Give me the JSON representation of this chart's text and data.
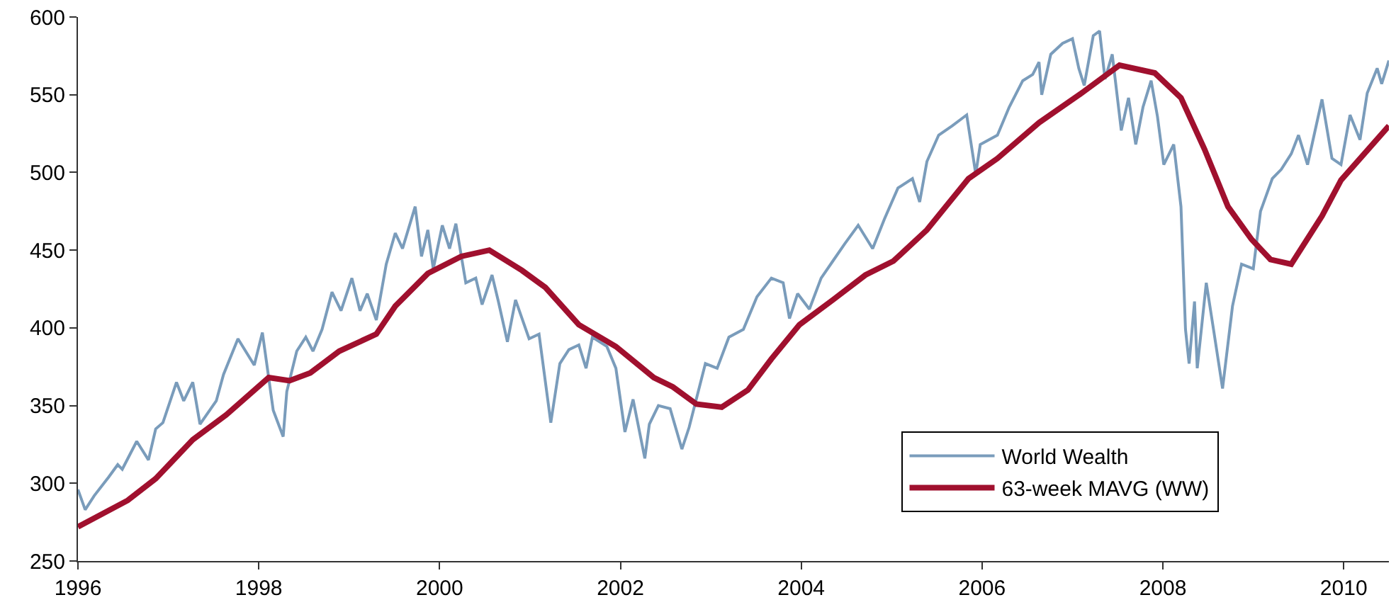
{
  "chart_data": {
    "type": "line",
    "xlim": [
      1996,
      2010.5
    ],
    "xticks": [
      1996,
      1998,
      2000,
      2002,
      2004,
      2006,
      2008,
      2010
    ],
    "ylim": [
      250,
      600
    ],
    "yticks": [
      250,
      300,
      350,
      400,
      450,
      500,
      550,
      600
    ],
    "legend": "bottom right",
    "marker": "none",
    "line_style": "solid",
    "series": [
      {
        "name": "World Wealth",
        "color": "#7a9cbb",
        "x": [
          1996.0,
          1996.08,
          1996.18,
          1996.34,
          1996.44,
          1996.49,
          1996.65,
          1996.78,
          1996.86,
          1996.94,
          1997.09,
          1997.17,
          1997.27,
          1997.35,
          1997.53,
          1997.61,
          1997.77,
          1997.95,
          1998.04,
          1998.16,
          1998.27,
          1998.31,
          1998.42,
          1998.52,
          1998.6,
          1998.7,
          1998.81,
          1998.91,
          1999.03,
          1999.12,
          1999.2,
          1999.3,
          1999.41,
          1999.51,
          1999.59,
          1999.73,
          1999.8,
          1999.87,
          1999.93,
          2000.03,
          2000.11,
          2000.18,
          2000.29,
          2000.4,
          2000.47,
          2000.58,
          2000.65,
          2000.75,
          2000.84,
          2000.99,
          2001.1,
          2001.23,
          2001.33,
          2001.43,
          2001.54,
          2001.62,
          2001.69,
          2001.85,
          2001.95,
          2002.05,
          2002.14,
          2002.27,
          2002.32,
          2002.42,
          2002.55,
          2002.68,
          2002.76,
          2002.94,
          2003.07,
          2003.2,
          2003.36,
          2003.51,
          2003.67,
          2003.8,
          2003.87,
          2003.96,
          2004.09,
          2004.22,
          2004.35,
          2004.48,
          2004.63,
          2004.79,
          2004.92,
          2005.07,
          2005.23,
          2005.31,
          2005.39,
          2005.52,
          2005.67,
          2005.83,
          2005.93,
          2005.98,
          2006.17,
          2006.3,
          2006.45,
          2006.56,
          2006.63,
          2006.66,
          2006.76,
          2006.89,
          2007.0,
          2007.07,
          2007.13,
          2007.23,
          2007.3,
          2007.36,
          2007.44,
          2007.54,
          2007.62,
          2007.7,
          2007.78,
          2007.87,
          2007.94,
          2008.01,
          2008.12,
          2008.2,
          2008.25,
          2008.29,
          2008.35,
          2008.38,
          2008.48,
          2008.56,
          2008.66,
          2008.77,
          2008.87,
          2009.0,
          2009.08,
          2009.21,
          2009.31,
          2009.42,
          2009.5,
          2009.6,
          2009.76,
          2009.87,
          2009.97,
          2010.07,
          2010.18,
          2010.26,
          2010.37,
          2010.42,
          2010.5
        ],
        "values": [
          296,
          283,
          292,
          304,
          312,
          309,
          327,
          315,
          335,
          339,
          365,
          353,
          365,
          338,
          353,
          370,
          393,
          376,
          397,
          347,
          330,
          359,
          385,
          394,
          385,
          399,
          423,
          411,
          432,
          411,
          422,
          405,
          441,
          461,
          451,
          478,
          446,
          463,
          438,
          466,
          451,
          467,
          429,
          432,
          415,
          434,
          417,
          391,
          418,
          393,
          396,
          339,
          377,
          386,
          389,
          374,
          394,
          388,
          374,
          333,
          354,
          316,
          338,
          350,
          348,
          322,
          336,
          377,
          374,
          394,
          399,
          420,
          432,
          429,
          406,
          422,
          412,
          432,
          443,
          454,
          466,
          451,
          470,
          490,
          496,
          481,
          507,
          524,
          530,
          537,
          499,
          518,
          524,
          542,
          559,
          563,
          571,
          550,
          576,
          583,
          586,
          567,
          556,
          588,
          591,
          560,
          576,
          527,
          548,
          518,
          542,
          559,
          536,
          505,
          518,
          478,
          399,
          377,
          417,
          374,
          429,
          399,
          361,
          414,
          441,
          438,
          475,
          496,
          502,
          512,
          524,
          505,
          547,
          509,
          505,
          537,
          521,
          551,
          567,
          557,
          572
        ]
      },
      {
        "name": "63-week MAVG (WW)",
        "color": "#a0102e",
        "x": [
          1996.0,
          1996.55,
          1996.86,
          1997.27,
          1997.64,
          1998.11,
          1998.34,
          1998.57,
          1998.89,
          1999.3,
          1999.51,
          1999.87,
          2000.24,
          2000.55,
          2000.91,
          2001.17,
          2001.54,
          2001.95,
          2002.37,
          2002.58,
          2002.84,
          2003.12,
          2003.41,
          2003.67,
          2003.98,
          2004.35,
          2004.71,
          2005.02,
          2005.39,
          2005.85,
          2006.17,
          2006.63,
          2007.1,
          2007.52,
          2007.91,
          2008.2,
          2008.46,
          2008.72,
          2008.98,
          2009.19,
          2009.42,
          2009.76,
          2009.97,
          2010.5
        ],
        "values": [
          272,
          289,
          303,
          328,
          344,
          368,
          366,
          371,
          385,
          396,
          414,
          435,
          446,
          450,
          437,
          426,
          402,
          388,
          368,
          362,
          351,
          349,
          360,
          380,
          402,
          418,
          434,
          443,
          463,
          496,
          509,
          532,
          551,
          569,
          564,
          548,
          515,
          478,
          457,
          444,
          441,
          472,
          495,
          530
        ]
      }
    ]
  }
}
